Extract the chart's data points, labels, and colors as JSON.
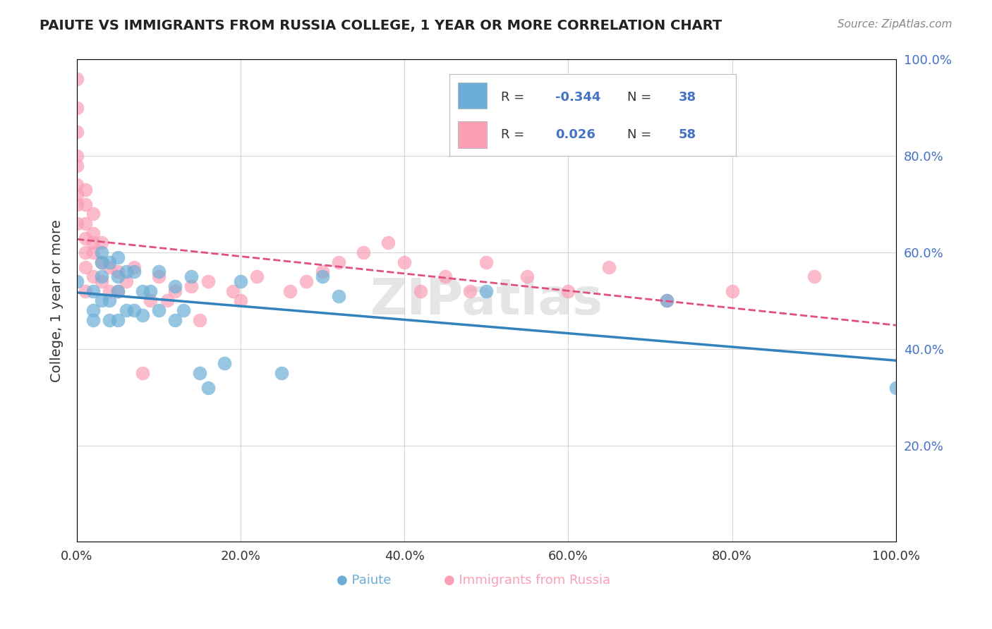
{
  "title": "PAIUTE VS IMMIGRANTS FROM RUSSIA COLLEGE, 1 YEAR OR MORE CORRELATION CHART",
  "source_text": "Source: ZipAtlas.com",
  "ylabel": "College, 1 year or more",
  "xlabel": "",
  "xlim": [
    0.0,
    1.0
  ],
  "ylim": [
    0.0,
    1.0
  ],
  "xtick_labels": [
    "0.0%",
    "20.0%",
    "40.0%",
    "60.0%",
    "80.0%",
    "100.0%"
  ],
  "ytick_labels": [
    "",
    "20.0%",
    "40.0%",
    "60.0%",
    "80.0%",
    "100.0%"
  ],
  "legend_r1": "R = -0.344",
  "legend_n1": "N = 38",
  "legend_r2": "R =  0.026",
  "legend_n2": "N = 58",
  "color_blue": "#6baed6",
  "color_pink": "#fa9fb5",
  "color_blue_line": "#3182bd",
  "color_pink_line": "#e05080",
  "watermark": "ZIPatlas",
  "paiute_x": [
    0.0,
    0.02,
    0.02,
    0.02,
    0.03,
    0.03,
    0.03,
    0.03,
    0.04,
    0.04,
    0.04,
    0.05,
    0.05,
    0.05,
    0.05,
    0.06,
    0.06,
    0.07,
    0.07,
    0.08,
    0.08,
    0.09,
    0.1,
    0.1,
    0.12,
    0.12,
    0.13,
    0.14,
    0.15,
    0.16,
    0.18,
    0.2,
    0.25,
    0.3,
    0.32,
    0.5,
    0.72,
    1.0
  ],
  "paiute_y": [
    0.54,
    0.48,
    0.52,
    0.46,
    0.58,
    0.6,
    0.55,
    0.5,
    0.58,
    0.5,
    0.46,
    0.59,
    0.55,
    0.52,
    0.46,
    0.56,
    0.48,
    0.56,
    0.48,
    0.52,
    0.47,
    0.52,
    0.56,
    0.48,
    0.53,
    0.46,
    0.48,
    0.55,
    0.35,
    0.32,
    0.37,
    0.54,
    0.35,
    0.55,
    0.51,
    0.52,
    0.5,
    0.32
  ],
  "russia_x": [
    0.0,
    0.0,
    0.0,
    0.0,
    0.0,
    0.0,
    0.0,
    0.0,
    0.0,
    0.01,
    0.01,
    0.01,
    0.01,
    0.01,
    0.01,
    0.01,
    0.02,
    0.02,
    0.02,
    0.02,
    0.02,
    0.03,
    0.03,
    0.03,
    0.04,
    0.04,
    0.05,
    0.05,
    0.06,
    0.07,
    0.08,
    0.09,
    0.1,
    0.11,
    0.12,
    0.14,
    0.15,
    0.16,
    0.19,
    0.2,
    0.22,
    0.26,
    0.28,
    0.3,
    0.32,
    0.35,
    0.38,
    0.4,
    0.42,
    0.45,
    0.48,
    0.5,
    0.55,
    0.6,
    0.65,
    0.72,
    0.8,
    0.9
  ],
  "russia_y": [
    0.96,
    0.9,
    0.85,
    0.8,
    0.78,
    0.74,
    0.72,
    0.7,
    0.66,
    0.73,
    0.7,
    0.66,
    0.63,
    0.6,
    0.57,
    0.52,
    0.68,
    0.64,
    0.62,
    0.6,
    0.55,
    0.62,
    0.58,
    0.54,
    0.57,
    0.52,
    0.56,
    0.52,
    0.54,
    0.57,
    0.35,
    0.5,
    0.55,
    0.5,
    0.52,
    0.53,
    0.46,
    0.54,
    0.52,
    0.5,
    0.55,
    0.52,
    0.54,
    0.56,
    0.58,
    0.6,
    0.62,
    0.58,
    0.52,
    0.55,
    0.52,
    0.58,
    0.55,
    0.52,
    0.57,
    0.5,
    0.52,
    0.55
  ]
}
